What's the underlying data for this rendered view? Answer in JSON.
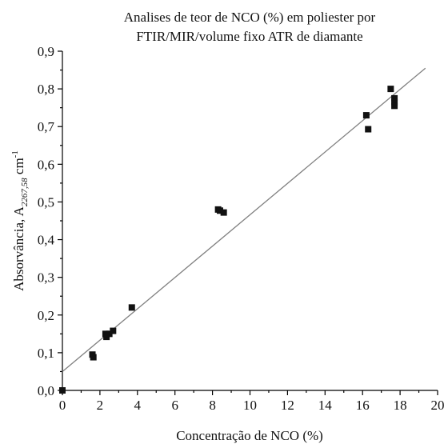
{
  "chart_data": {
    "type": "scatter",
    "title": [
      "Analises de teor de NCO (%) em poliester por",
      "FTIR/MIR/volume fixo ATR de diamante"
    ],
    "xlabel": "Concentração de NCO (%)",
    "ylabel": {
      "main": "Absorvância, A",
      "subscript": "2267,58",
      "unit": " cm",
      "superscript": "-1"
    },
    "xlim": [
      0,
      20
    ],
    "ylim": [
      0,
      0.9
    ],
    "x_ticks": [
      0,
      2,
      4,
      6,
      8,
      10,
      12,
      14,
      16,
      18,
      20
    ],
    "x_tick_labels": [
      "0",
      "2",
      "4",
      "6",
      "8",
      "10",
      "12",
      "14",
      "16",
      "18",
      "20"
    ],
    "y_ticks": [
      0,
      0.1,
      0.2,
      0.3,
      0.4,
      0.5,
      0.6,
      0.7,
      0.8,
      0.9
    ],
    "y_tick_labels": [
      "0,0",
      "0,1",
      "0,2",
      "0,3",
      "0,4",
      "0,5",
      "0,6",
      "0,7",
      "0,8",
      "0,9"
    ],
    "grid": false,
    "series": [
      {
        "marker": "square",
        "color": "#111111",
        "points": [
          [
            0.0,
            0.0
          ],
          [
            1.6,
            0.095
          ],
          [
            1.65,
            0.088
          ],
          [
            2.3,
            0.15
          ],
          [
            2.35,
            0.142
          ],
          [
            2.5,
            0.15
          ],
          [
            2.7,
            0.158
          ],
          [
            3.7,
            0.22
          ],
          [
            8.3,
            0.48
          ],
          [
            8.4,
            0.477
          ],
          [
            8.6,
            0.472
          ],
          [
            16.2,
            0.73
          ],
          [
            16.3,
            0.693
          ],
          [
            17.5,
            0.8
          ],
          [
            17.7,
            0.775
          ],
          [
            17.7,
            0.765
          ],
          [
            17.7,
            0.755
          ]
        ]
      }
    ],
    "fit_line": {
      "color": "#808080",
      "x": [
        0,
        19.35
      ],
      "y": [
        0.05,
        0.855
      ]
    }
  }
}
